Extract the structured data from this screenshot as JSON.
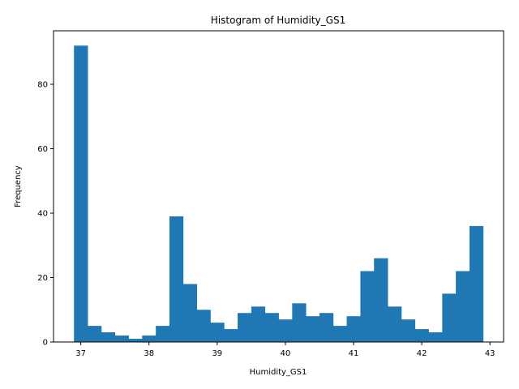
{
  "chart_data": {
    "type": "bar",
    "title": "Histogram of Humidity_GS1",
    "xlabel": "Humidity_GS1",
    "ylabel": "Frequency",
    "x_range": [
      36.9,
      42.9
    ],
    "xlim": [
      36.6,
      43.2
    ],
    "ylim": [
      0,
      96.6
    ],
    "xticks": [
      37,
      38,
      39,
      40,
      41,
      42,
      43
    ],
    "yticks": [
      0,
      20,
      40,
      60,
      80
    ],
    "bar_color": "#1f77b4",
    "grid": false,
    "legend": "none",
    "counts": [
      92,
      5,
      3,
      2,
      1,
      2,
      5,
      39,
      18,
      10,
      6,
      4,
      9,
      11,
      9,
      7,
      12,
      8,
      9,
      5,
      8,
      22,
      26,
      11,
      7,
      4,
      3,
      15,
      22,
      36
    ]
  }
}
